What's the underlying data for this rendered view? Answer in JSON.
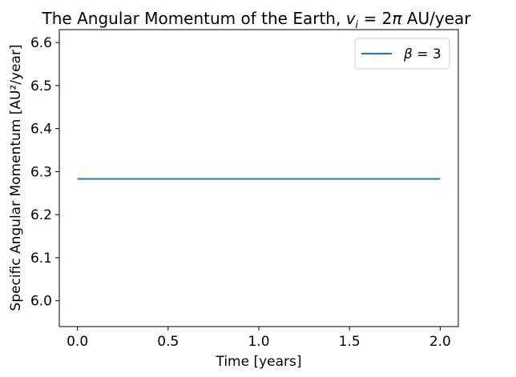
{
  "chart_data": {
    "type": "line",
    "title": "The Angular Momentum of the Earth,",
    "title_math": {
      "var": "v",
      "sub": "i",
      "eq": " = 2",
      "pi": "π",
      "unit": " AU/year"
    },
    "xlabel": "Time [years]",
    "ylabel": "Specific Angular Momentum [AU²/year]",
    "xlim": [
      -0.1,
      2.1
    ],
    "ylim": [
      5.94,
      6.63
    ],
    "xticks": [
      0.0,
      0.5,
      1.0,
      1.5,
      2.0
    ],
    "xtick_labels": [
      "0.0",
      "0.5",
      "1.0",
      "1.5",
      "2.0"
    ],
    "yticks": [
      6.0,
      6.1,
      6.2,
      6.3,
      6.4,
      6.5,
      6.6
    ],
    "ytick_labels": [
      "6.0",
      "6.1",
      "6.2",
      "6.3",
      "6.4",
      "6.5",
      "6.6"
    ],
    "grid": false,
    "legend_position": "upper-right",
    "series": [
      {
        "name": "β = 3",
        "legend_var": "β",
        "legend_eq": " = 3",
        "color": "#1f77b4",
        "x": [
          0.0,
          0.5,
          1.0,
          1.5,
          2.0
        ],
        "y": [
          6.2832,
          6.2832,
          6.2832,
          6.2832,
          6.2832
        ]
      }
    ]
  }
}
